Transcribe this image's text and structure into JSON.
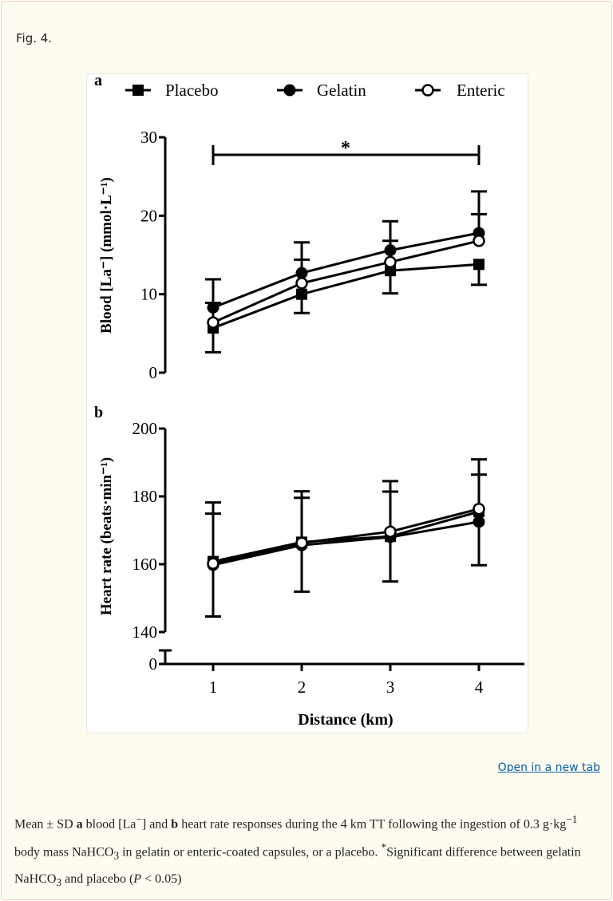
{
  "figure_label": "Fig. 4.",
  "open_link": "Open in a new tab",
  "caption": {
    "p1": "Mean ± SD ",
    "a": "a",
    "p2": " blood [La",
    "sup_minus": "−",
    "p3": "] and ",
    "b": "b",
    "p4": " heart rate responses during the 4  km TT following the ingestion of 0.3  g·kg",
    "sup_m1": "−1",
    "p5": " body mass NaHCO",
    "sub3": "3",
    "p6": " in gelatin or enteric-coated capsules, or a placebo. ",
    "sup_star": "*",
    "p7": "Significant difference between gelatin NaHCO",
    "sub3b": "3",
    "p8": " and placebo (",
    "p_italic": "P",
    "p9": " < 0.05)"
  },
  "legend": [
    {
      "name": "Placebo",
      "marker": "filled-square"
    },
    {
      "name": "Gelatin",
      "marker": "filled-circle"
    },
    {
      "name": "Enteric",
      "marker": "open-circle"
    }
  ],
  "chart_data": [
    {
      "type": "line",
      "panel_label": "a",
      "ylabel": "Blood [La⁻] (mmol·L⁻¹)",
      "xlabel": "",
      "x": [
        1,
        2,
        3,
        4
      ],
      "ylim": [
        0,
        30
      ],
      "yticks": [
        "0",
        "10",
        "20",
        "30"
      ],
      "annotation": "*",
      "series": [
        {
          "name": "Placebo",
          "values": [
            5.7,
            10.0,
            13.0,
            13.8
          ],
          "sd": [
            3.1,
            2.4,
            2.9,
            2.6
          ],
          "error_dir": "down"
        },
        {
          "name": "Gelatin",
          "values": [
            8.3,
            12.7,
            15.6,
            17.8
          ],
          "sd": [
            3.6,
            3.9,
            3.7,
            5.3
          ],
          "error_dir": "up"
        },
        {
          "name": "Enteric",
          "values": [
            6.4,
            11.4,
            14.1,
            16.8
          ],
          "sd": [
            2.5,
            3.0,
            2.7,
            3.4
          ],
          "error_dir": "up"
        }
      ]
    },
    {
      "type": "line",
      "panel_label": "b",
      "ylabel": "Heart rate (beats·min⁻¹)",
      "xlabel": "Distance (km)",
      "x": [
        1,
        2,
        3,
        4
      ],
      "xticks": [
        "1",
        "2",
        "3",
        "4"
      ],
      "ylim": [
        140,
        200
      ],
      "axis_break": true,
      "yticks": [
        "0",
        "140",
        "160",
        "180",
        "200"
      ],
      "series": [
        {
          "name": "Placebo",
          "values": [
            160.8,
            166.5,
            168.2,
            175.5
          ],
          "sd": [
            16.2,
            14.6,
            13.3,
            15.8
          ],
          "error_dir": "down"
        },
        {
          "name": "Gelatin",
          "values": [
            159.8,
            165.6,
            168.0,
            172.5
          ],
          "sd": [
            18.4,
            15.9,
            16.5,
            13.9
          ],
          "error_dir": "up"
        },
        {
          "name": "Enteric",
          "values": [
            160.2,
            166.3,
            169.6,
            176.3
          ],
          "sd": [
            14.7,
            13.3,
            11.8,
            14.6
          ],
          "error_dir": "up"
        }
      ]
    }
  ]
}
